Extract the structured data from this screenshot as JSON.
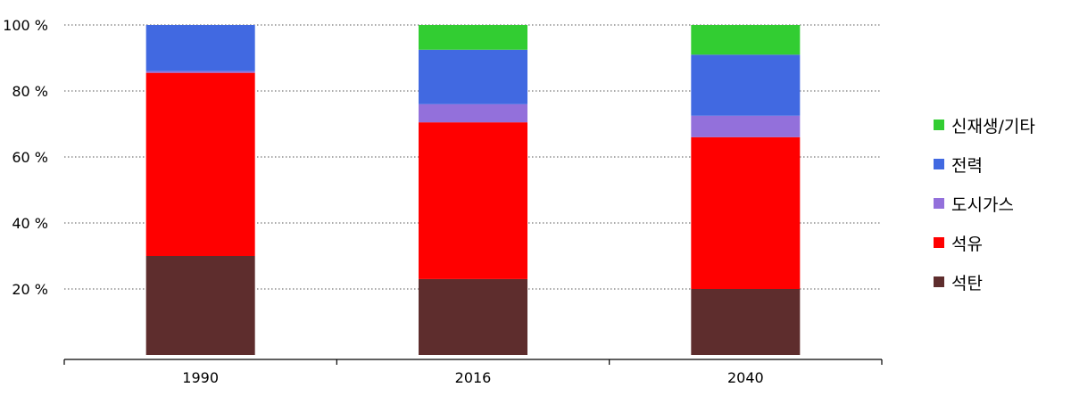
{
  "chart_data": {
    "type": "bar",
    "stacked": true,
    "categories": [
      "1990",
      "2016",
      "2040"
    ],
    "series": [
      {
        "name": "석탄",
        "color": "#5e2d2d",
        "values": [
          30,
          23,
          20
        ]
      },
      {
        "name": "석유",
        "color": "#ff0000",
        "values": [
          55.5,
          47.5,
          46
        ]
      },
      {
        "name": "도시가스",
        "color": "#9370db",
        "values": [
          0.5,
          5.5,
          6.5
        ]
      },
      {
        "name": "전력",
        "color": "#4169e1",
        "values": [
          14,
          16.5,
          18.5
        ]
      },
      {
        "name": "신재생/기타",
        "color": "#32cd32",
        "values": [
          0,
          7.5,
          9
        ]
      }
    ],
    "y_ticks": [
      "20 %",
      "40 %",
      "60 %",
      "80 %",
      "100 %"
    ],
    "ylim": [
      0,
      100
    ],
    "grid": true,
    "legend_position": "right"
  }
}
